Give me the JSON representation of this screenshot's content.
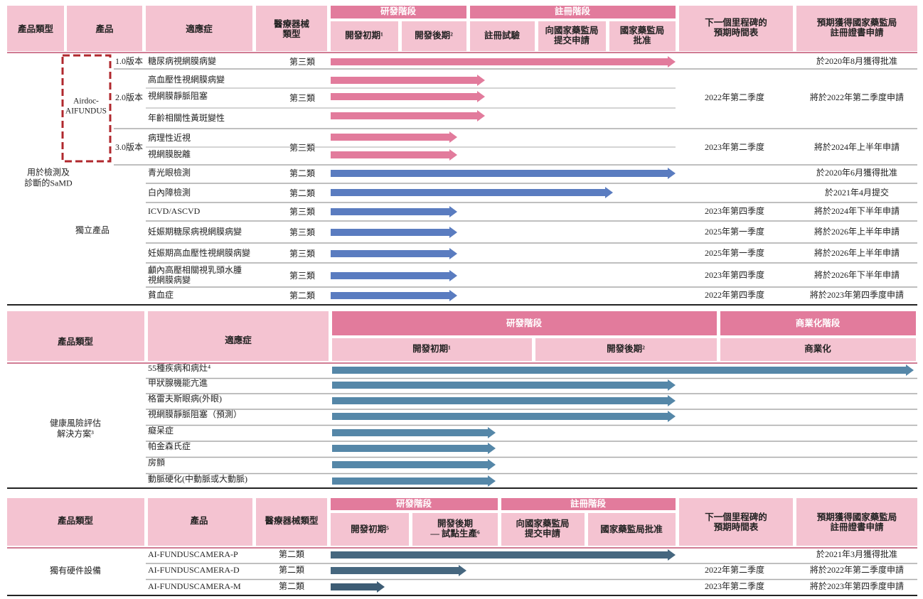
{
  "s1": {
    "header": {
      "type": "產品類型",
      "product": "產品",
      "indication": "適應症",
      "device_class": [
        "醫療器械",
        "類型"
      ],
      "rd_stage": "研發階段",
      "reg_stage": "註冊階段",
      "early": "開發初期¹",
      "late": "開發後期²",
      "trial": "註冊試驗",
      "submit": [
        "向國家藥監局",
        "提交申請"
      ],
      "approve": [
        "國家藥監局",
        "批准"
      ],
      "milestone": [
        "下一個里程碑的",
        "預期時間表"
      ],
      "cert": [
        "預期獲得國家藥監局",
        "註冊證書申請"
      ]
    },
    "groups": {
      "airdoc": [
        "Airdoc-",
        "AIFUNDUS"
      ],
      "samd": [
        "用於檢測及",
        "診斷的SaMD"
      ],
      "standalone": "獨立產品"
    },
    "rows": [
      {
        "version": "1.0版本",
        "indications": [
          "糖尿病視網膜病變"
        ],
        "device_class": "第三類",
        "cert": "於2020年8月獲得批准"
      },
      {
        "version": "2.0版本",
        "indications": [
          "高血壓性視網膜病變",
          "視網膜靜脈阻塞",
          "年齡相關性黃斑變性"
        ],
        "device_class": "第三類",
        "milestone": "2022年第二季度",
        "cert": "將於2022年第二季度申請"
      },
      {
        "version": "3.0版本",
        "indications": [
          "病理性近視",
          "視網膜脫離"
        ],
        "device_class": "第三類",
        "milestone": "2023年第二季度",
        "cert": "將於2024年上半年申請"
      },
      {
        "indications": [
          "青光眼檢測"
        ],
        "device_class": "第二類",
        "cert": "於2020年6月獲得批准"
      },
      {
        "indications": [
          "白內障檢測"
        ],
        "device_class": "第二類",
        "cert": "於2021年4月提交"
      },
      {
        "indications": [
          "ICVD/ASCVD"
        ],
        "device_class": "第三類",
        "milestone": "2023年第四季度",
        "cert": "將於2024年下半年申請"
      },
      {
        "indications": [
          "妊娠期糖尿病視網膜病變"
        ],
        "device_class": "第三類",
        "milestone": "2025年第一季度",
        "cert": "將於2026年上半年申請"
      },
      {
        "indications": [
          "妊娠期高血壓性視網膜病變"
        ],
        "device_class": "第三類",
        "milestone": "2025年第一季度",
        "cert": "將於2026年上半年申請"
      },
      {
        "indications": [
          "顱內高壓相關視乳頭水腫",
          "視網膜病變"
        ],
        "device_class": "第三類",
        "milestone": "2023年第四季度",
        "cert": "將於2026年下半年申請"
      },
      {
        "indications": [
          "貧血症"
        ],
        "device_class": "第二類",
        "milestone": "2022年第四季度",
        "cert": "將於2023年第四季度申請"
      }
    ]
  },
  "s2": {
    "header": {
      "type": "產品類型",
      "indication": "適應症",
      "rd_stage": "研發階段",
      "commercial_stage": "商業化階段",
      "early": "開發初期¹",
      "late": "開發後期²",
      "commercial": "商業化"
    },
    "group": [
      "健康風險評估",
      "解決方案³"
    ],
    "indications": [
      "55種疾病和病灶⁴",
      "甲狀腺機能亢進",
      "格雷夫斯眼病(外眼)",
      "視網膜靜脈阻塞（預測）",
      "癡呆症",
      "帕金森氏症",
      "房顫",
      "動脈硬化(中動脈或大動脈)"
    ]
  },
  "s3": {
    "header": {
      "type": "產品類型",
      "product": "產品",
      "device_class": "醫療器械類型",
      "rd_stage": "研發階段",
      "reg_stage": "註冊階段",
      "early": "開發初期⁵",
      "late": [
        "開發後期",
        "— 試點生產⁶"
      ],
      "submit": [
        "向國家藥監局",
        "提交申請"
      ],
      "approve": "國家藥監局批准",
      "milestone": [
        "下一個里程碑的",
        "預期時間表"
      ],
      "cert": [
        "預期獲得國家藥監局",
        "註冊證書申請"
      ]
    },
    "group": "獨有硬件設備",
    "rows": [
      {
        "product": "AI-FUNDUSCAMERA-P",
        "device_class": "第二類",
        "cert": "於2021年3月獲得批准"
      },
      {
        "product": "AI-FUNDUSCAMERA-D",
        "device_class": "第二類",
        "milestone": "2022年第二季度",
        "cert": "將於2022年第二季度申請"
      },
      {
        "product": "AI-FUNDUSCAMERA-M",
        "device_class": "第二類",
        "milestone": "2023年第二季度",
        "cert": "將於2023年第四季度申請"
      }
    ]
  }
}
